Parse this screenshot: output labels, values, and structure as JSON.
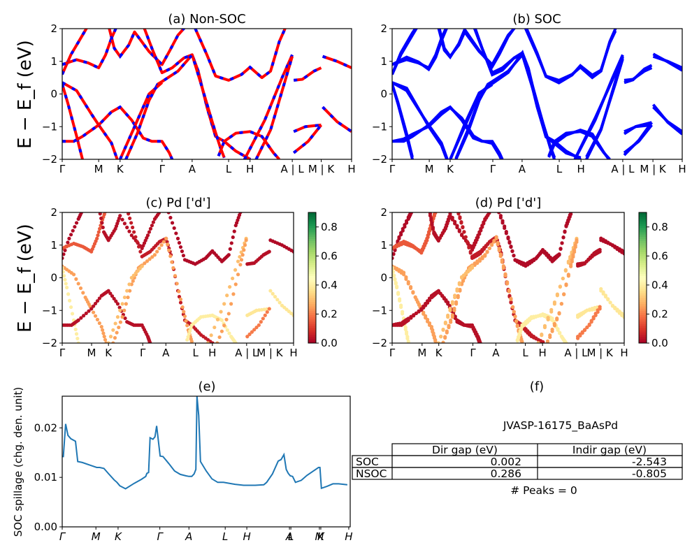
{
  "figure": {
    "ylabel_energy": "E − E_f (eV)",
    "material_label": "JVASP-16175_BaAsPd",
    "peaks_label": "# Peaks = 0"
  },
  "table": {
    "title": "(f)",
    "columns": [
      "",
      "Dir gap (eV)",
      "Indir gap (eV)"
    ],
    "rows": [
      {
        "label": "SOC",
        "dir_gap": "0.002",
        "indir_gap": "-2.543"
      },
      {
        "label": "NSOC",
        "dir_gap": "0.286",
        "indir_gap": "-0.805"
      }
    ]
  },
  "colors": {
    "nonsoc_line": "#ff0000",
    "nonsoc_dash": "#0000ff",
    "soc_line": "#0000ff",
    "spillage_line": "#1f77b4",
    "colormap": [
      "#a50026",
      "#d73027",
      "#f46d43",
      "#fdae61",
      "#fee08b",
      "#ffffbf",
      "#d9ef8b",
      "#a6d96a",
      "#66bd63",
      "#1a9850",
      "#006837"
    ]
  },
  "chart_data": [
    {
      "id": "a",
      "type": "line",
      "title": "(a) Non-SOC",
      "xlabel": "",
      "ylabel": "E − E_f (eV)",
      "ylim": [
        -2,
        2
      ],
      "yticks": [
        -2,
        -1,
        0,
        1,
        2
      ],
      "grid": false,
      "xticks": [
        {
          "label": "Γ",
          "x": 0.0
        },
        {
          "label": "M",
          "x": 0.126
        },
        {
          "label": "K",
          "x": 0.2
        },
        {
          "label": "Γ",
          "x": 0.345
        },
        {
          "label": "A",
          "x": 0.449
        },
        {
          "label": "L",
          "x": 0.575
        },
        {
          "label": "H",
          "x": 0.649
        },
        {
          "label": "A | L",
          "x": 0.795
        },
        {
          "label": "M | K",
          "x": 0.895
        },
        {
          "label": "H",
          "x": 1.0
        }
      ],
      "series_style": "red line with blue dashes (SOC-free bands overlaid)",
      "bands": [
        [
          [
            0,
            0.6
          ],
          [
            0.03,
            1.2
          ],
          [
            0.07,
            1.8
          ],
          [
            0.09,
            2.1
          ]
        ],
        [
          [
            0,
            0.9
          ],
          [
            0.05,
            1.05
          ],
          [
            0.09,
            0.95
          ],
          [
            0.126,
            0.8
          ],
          [
            0.15,
            1.2
          ],
          [
            0.17,
            1.7
          ],
          [
            0.19,
            2.1
          ]
        ],
        [
          [
            0.16,
            2.1
          ],
          [
            0.18,
            1.4
          ],
          [
            0.2,
            1.15
          ],
          [
            0.23,
            1.5
          ],
          [
            0.25,
            1.9
          ],
          [
            0.3,
            1.3
          ],
          [
            0.345,
            0.9
          ],
          [
            0.37,
            1.3
          ],
          [
            0.4,
            1.8
          ],
          [
            0.43,
            2.1
          ]
        ],
        [
          [
            0.28,
            2.1
          ],
          [
            0.31,
            1.4
          ],
          [
            0.345,
            0.65
          ],
          [
            0.38,
            0.8
          ],
          [
            0.42,
            1.1
          ],
          [
            0.449,
            1.2
          ],
          [
            0.47,
            0.7
          ],
          [
            0.5,
            -0.4
          ],
          [
            0.53,
            -1.3
          ],
          [
            0.56,
            -1.45
          ],
          [
            0.6,
            -1.75
          ],
          [
            0.65,
            -2.0
          ]
        ],
        [
          [
            0.46,
            2.0
          ],
          [
            0.5,
            1.2
          ],
          [
            0.53,
            0.55
          ],
          [
            0.575,
            0.42
          ],
          [
            0.62,
            0.6
          ],
          [
            0.649,
            0.82
          ],
          [
            0.69,
            0.5
          ],
          [
            0.72,
            0.7
          ],
          [
            0.75,
            1.6
          ],
          [
            0.77,
            2.0
          ]
        ],
        [
          [
            0,
            0.35
          ],
          [
            0.05,
            0.1
          ],
          [
            0.1,
            -0.6
          ],
          [
            0.126,
            -0.95
          ],
          [
            0.17,
            -1.5
          ],
          [
            0.19,
            -2.0
          ]
        ],
        [
          [
            0,
            0.3
          ],
          [
            0.02,
            -0.3
          ],
          [
            0.05,
            -1.3
          ],
          [
            0.07,
            -2.0
          ]
        ],
        [
          [
            0,
            -1.45
          ],
          [
            0.04,
            -1.45
          ],
          [
            0.07,
            -1.3
          ],
          [
            0.126,
            -0.95
          ],
          [
            0.17,
            -0.55
          ],
          [
            0.2,
            -0.4
          ],
          [
            0.24,
            -0.8
          ],
          [
            0.28,
            -1.35
          ],
          [
            0.31,
            -1.45
          ],
          [
            0.345,
            -1.45
          ],
          [
            0.37,
            -1.8
          ],
          [
            0.38,
            -2.0
          ]
        ],
        [
          [
            0.22,
            -2.0
          ],
          [
            0.26,
            -1.2
          ],
          [
            0.3,
            -0.2
          ],
          [
            0.33,
            0.3
          ],
          [
            0.345,
            0.38
          ],
          [
            0.4,
            0.7
          ],
          [
            0.449,
            1.2
          ],
          [
            0.48,
            0.3
          ],
          [
            0.52,
            -0.9
          ],
          [
            0.545,
            -1.6
          ],
          [
            0.56,
            -1.95
          ]
        ],
        [
          [
            0.2,
            -2.0
          ],
          [
            0.25,
            -1.0
          ],
          [
            0.3,
            0.0
          ],
          [
            0.345,
            0.35
          ]
        ],
        [
          [
            0.54,
            -1.9
          ],
          [
            0.56,
            -1.45
          ],
          [
            0.6,
            -1.2
          ],
          [
            0.649,
            -1.15
          ],
          [
            0.69,
            -1.3
          ],
          [
            0.73,
            -1.8
          ],
          [
            0.75,
            -2.0
          ]
        ],
        [
          [
            0.63,
            -2.0
          ],
          [
            0.7,
            -0.8
          ],
          [
            0.76,
            0.5
          ],
          [
            0.795,
            1.2
          ]
        ],
        [
          [
            0.67,
            -2.0
          ],
          [
            0.72,
            -1.1
          ],
          [
            0.77,
            0.4
          ],
          [
            0.795,
            1.15
          ]
        ],
        [
          [
            0.8,
            0.42
          ],
          [
            0.83,
            0.45
          ],
          [
            0.87,
            0.7
          ],
          [
            0.895,
            0.8
          ]
        ],
        [
          [
            0.8,
            -1.15
          ],
          [
            0.84,
            -1.0
          ],
          [
            0.895,
            -0.95
          ]
        ],
        [
          [
            0.8,
            -1.8
          ],
          [
            0.85,
            -1.45
          ],
          [
            0.895,
            -0.95
          ]
        ],
        [
          [
            0.9,
            1.15
          ],
          [
            0.95,
            1.0
          ],
          [
            1.0,
            0.8
          ]
        ],
        [
          [
            0.9,
            -0.4
          ],
          [
            0.95,
            -0.85
          ],
          [
            1.0,
            -1.15
          ]
        ]
      ]
    },
    {
      "id": "b",
      "type": "line",
      "title": "(b) SOC",
      "ylim": [
        -2,
        2
      ],
      "yticks": [
        -2,
        -1,
        0,
        1,
        2
      ],
      "grid": false,
      "xticks": [
        {
          "label": "Γ",
          "x": 0.0
        },
        {
          "label": "M",
          "x": 0.128
        },
        {
          "label": "K",
          "x": 0.2
        },
        {
          "label": "Γ",
          "x": 0.347
        },
        {
          "label": "A",
          "x": 0.448
        },
        {
          "label": "L",
          "x": 0.576
        },
        {
          "label": "H",
          "x": 0.651
        },
        {
          "label": "A | L",
          "x": 0.795
        },
        {
          "label": "M | K",
          "x": 0.899
        },
        {
          "label": "H",
          "x": 1.0
        }
      ],
      "series_style": "blue bands (SOC, split pairs)",
      "bands_ref": "a",
      "split": 0.08
    },
    {
      "id": "c",
      "type": "scatter",
      "title": "(c)  Pd ['d']",
      "ylim": [
        -2,
        2
      ],
      "yticks": [
        -2,
        -1,
        0,
        1,
        2
      ],
      "colorbar": {
        "range": [
          0.0,
          0.9
        ],
        "ticks": [
          0.0,
          0.2,
          0.4,
          0.6,
          0.8
        ],
        "cmap": "RdYlGn"
      },
      "xticks": [
        {
          "label": "Γ",
          "x": 0.0
        },
        {
          "label": "M",
          "x": 0.127
        },
        {
          "label": "K",
          "x": 0.2
        },
        {
          "label": "Γ",
          "x": 0.348
        },
        {
          "label": "A",
          "x": 0.448
        },
        {
          "label": "L",
          "x": 0.576
        },
        {
          "label": "H",
          "x": 0.649
        },
        {
          "label": "A | L",
          "x": 0.797
        },
        {
          "label": "M | K",
          "x": 0.897
        },
        {
          "label": "H",
          "x": 1.0
        }
      ],
      "bands_ref": "a",
      "band_weights": [
        0.02,
        0.15,
        0.03,
        0.05,
        0.02,
        0.25,
        0.4,
        0.03,
        0.25,
        0.3,
        0.4,
        0.3,
        0.25,
        0.03,
        0.38,
        0.2,
        0.02,
        0.38
      ]
    },
    {
      "id": "d",
      "type": "scatter",
      "title": "(d) Pd ['d']",
      "ylim": [
        -2,
        2
      ],
      "yticks": [
        -2,
        -1,
        0,
        1,
        2
      ],
      "colorbar": {
        "range": [
          0.0,
          0.9
        ],
        "ticks": [
          0.0,
          0.2,
          0.4,
          0.6,
          0.8
        ],
        "cmap": "RdYlGn"
      },
      "xticks": [
        {
          "label": "Γ",
          "x": 0.0
        },
        {
          "label": "M",
          "x": 0.129
        },
        {
          "label": "K",
          "x": 0.201
        },
        {
          "label": "Γ",
          "x": 0.348
        },
        {
          "label": "A",
          "x": 0.447
        },
        {
          "label": "L",
          "x": 0.574
        },
        {
          "label": "H",
          "x": 0.648
        },
        {
          "label": "A | L",
          "x": 0.792
        },
        {
          "label": "M | K",
          "x": 0.895
        },
        {
          "label": "H",
          "x": 1.0
        }
      ],
      "bands_ref": "a",
      "split": 0.06,
      "band_weights_ref": "c"
    },
    {
      "id": "e",
      "type": "line",
      "title": "(e)",
      "xlabel": "",
      "ylabel": "SOC spillage (chg. den. unit)",
      "ylim": [
        0.0,
        0.0264
      ],
      "yticks": [
        "0.00",
        "0.01",
        "0.02"
      ],
      "grid": false,
      "xticks": [
        {
          "label": "Γ",
          "x": 0.0
        },
        {
          "label": "M",
          "x": 0.117
        },
        {
          "label": "K",
          "x": 0.194
        },
        {
          "label": "Γ",
          "x": 0.339
        },
        {
          "label": "A",
          "x": 0.44
        },
        {
          "label": "L",
          "x": 0.566
        },
        {
          "label": "H",
          "x": 0.641
        },
        {
          "label": "A",
          "x": 0.789
        },
        {
          "label": "L",
          "x": 0.794
        },
        {
          "label": "M",
          "x": 0.893
        },
        {
          "label": "K",
          "x": 0.898
        },
        {
          "label": "H",
          "x": 0.995
        }
      ],
      "x": [
        0.0,
        0.004,
        0.012,
        0.02,
        0.03,
        0.046,
        0.054,
        0.07,
        0.1,
        0.12,
        0.13,
        0.145,
        0.16,
        0.18,
        0.19,
        0.2,
        0.22,
        0.25,
        0.275,
        0.29,
        0.294,
        0.3,
        0.305,
        0.315,
        0.322,
        0.328,
        0.34,
        0.35,
        0.37,
        0.39,
        0.41,
        0.43,
        0.44,
        0.45,
        0.458,
        0.464,
        0.468,
        0.474,
        0.48,
        0.5,
        0.52,
        0.54,
        0.56,
        0.6,
        0.63,
        0.67,
        0.7,
        0.71,
        0.73,
        0.75,
        0.76,
        0.77,
        0.778,
        0.785,
        0.792,
        0.8,
        0.81,
        0.83,
        0.85,
        0.87,
        0.89,
        0.895,
        0.9,
        0.92,
        0.94,
        0.96,
        0.99
      ],
      "y": [
        0.0142,
        0.0142,
        0.0208,
        0.0185,
        0.0178,
        0.0173,
        0.0132,
        0.013,
        0.0124,
        0.012,
        0.012,
        0.0118,
        0.0108,
        0.0095,
        0.009,
        0.0083,
        0.0077,
        0.0088,
        0.0096,
        0.0102,
        0.0108,
        0.011,
        0.018,
        0.0177,
        0.0182,
        0.0204,
        0.0143,
        0.0142,
        0.0128,
        0.0113,
        0.0106,
        0.0103,
        0.0102,
        0.0102,
        0.0107,
        0.0116,
        0.0264,
        0.0225,
        0.0132,
        0.0113,
        0.0097,
        0.009,
        0.009,
        0.0086,
        0.0084,
        0.0084,
        0.0085,
        0.009,
        0.0107,
        0.0133,
        0.0136,
        0.0146,
        0.0116,
        0.0108,
        0.0103,
        0.0102,
        0.009,
        0.0094,
        0.0104,
        0.0112,
        0.012,
        0.012,
        0.0078,
        0.0082,
        0.0087,
        0.0087,
        0.0085
      ]
    }
  ]
}
